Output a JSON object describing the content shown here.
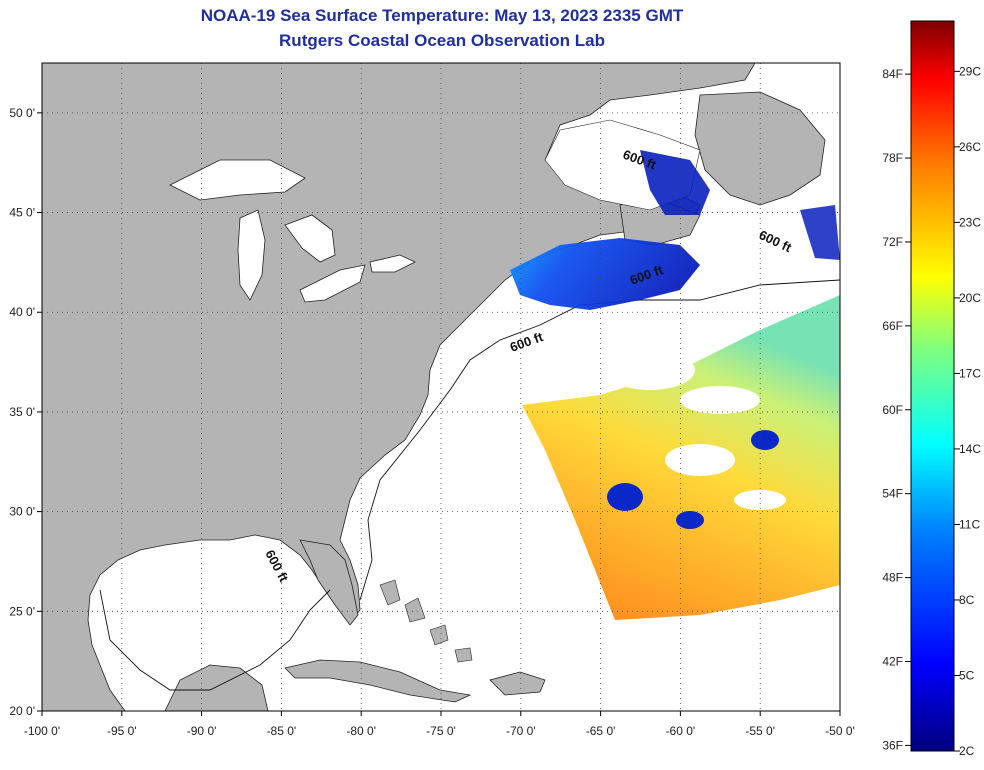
{
  "title": "NOAA-19 Sea Surface Temperature:  May 13, 2023 2335 GMT",
  "subtitle": "Rutgers Coastal Ocean Observation Lab",
  "map": {
    "lon_range": [
      -100,
      -50
    ],
    "lat_range": [
      20,
      52.5
    ],
    "lon_ticks": [
      "-100 0'",
      "-95 0'",
      "-90 0'",
      "-85 0'",
      "-80 0'",
      "-75 0'",
      "-70 0'",
      "-65 0'",
      "-60 0'",
      "-55 0'",
      "-50 0'"
    ],
    "lat_ticks": [
      "50 0'",
      "45 0'",
      "40 0'",
      "35 0'",
      "30 0'",
      "25 0'",
      "20 0'"
    ],
    "lon_tick_values": [
      -100,
      -95,
      -90,
      -85,
      -80,
      -75,
      -70,
      -65,
      -60,
      -55,
      -50
    ],
    "lat_tick_values": [
      50,
      45,
      40,
      35,
      30,
      25,
      20
    ],
    "land_color": "#b4b4b4",
    "water_color": "#ffffff",
    "gridlines": "dotted",
    "contour_labels": [
      "600 ft",
      "600 ft",
      "600 ft",
      "600 ft",
      "600 ft"
    ]
  },
  "colorbar": {
    "f_labels": [
      "84F",
      "78F",
      "72F",
      "66F",
      "60F",
      "54F",
      "48F",
      "42F",
      "36F"
    ],
    "f_values": [
      84,
      78,
      72,
      66,
      60,
      54,
      48,
      42,
      36
    ],
    "c_labels": [
      "29C",
      "26C",
      "23C",
      "20C",
      "17C",
      "14C",
      "11C",
      "8C",
      "5C",
      "2C"
    ],
    "c_values": [
      29,
      26,
      23,
      20,
      17,
      14,
      11,
      8,
      5,
      2
    ],
    "range_c": [
      2,
      31
    ],
    "colors": [
      "#00007f",
      "#0000ff",
      "#007fff",
      "#00ffff",
      "#7fff7f",
      "#ffff00",
      "#ff7f00",
      "#ff0000",
      "#7f0000"
    ]
  }
}
